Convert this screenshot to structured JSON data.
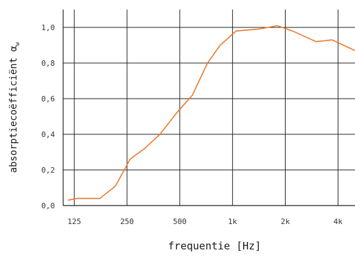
{
  "chart_data": {
    "type": "line",
    "xscale": "log",
    "xlabel": "frequentie [Hz]",
    "ylabel": "absorptiecoëfficiënt α",
    "ylabel_subscript": "w",
    "xlim": [
      108,
      5000
    ],
    "ylim": [
      0.0,
      1.1
    ],
    "grid": true,
    "line_color": "#e8782e",
    "x_ticks": [
      {
        "value": 125,
        "label": "125"
      },
      {
        "value": 250,
        "label": "250"
      },
      {
        "value": 500,
        "label": "500"
      },
      {
        "value": 1000,
        "label": "1k"
      },
      {
        "value": 2000,
        "label": "2k"
      },
      {
        "value": 4000,
        "label": "4k"
      }
    ],
    "y_ticks": [
      {
        "value": 0.0,
        "label": "0,0"
      },
      {
        "value": 0.2,
        "label": "0,2"
      },
      {
        "value": 0.4,
        "label": "0,4"
      },
      {
        "value": 0.6,
        "label": "0,6"
      },
      {
        "value": 0.8,
        "label": "0,8"
      },
      {
        "value": 1.0,
        "label": "1,0"
      }
    ],
    "series": [
      {
        "x": [
          115,
          130,
          175,
          215,
          260,
          315,
          385,
          480,
          590,
          720,
          850,
          1050,
          1400,
          1800,
          2200,
          3000,
          3700,
          5000
        ],
        "y": [
          0.03,
          0.04,
          0.04,
          0.11,
          0.26,
          0.32,
          0.4,
          0.52,
          0.62,
          0.8,
          0.9,
          0.98,
          0.99,
          1.01,
          0.98,
          0.92,
          0.93,
          0.87
        ]
      }
    ]
  }
}
